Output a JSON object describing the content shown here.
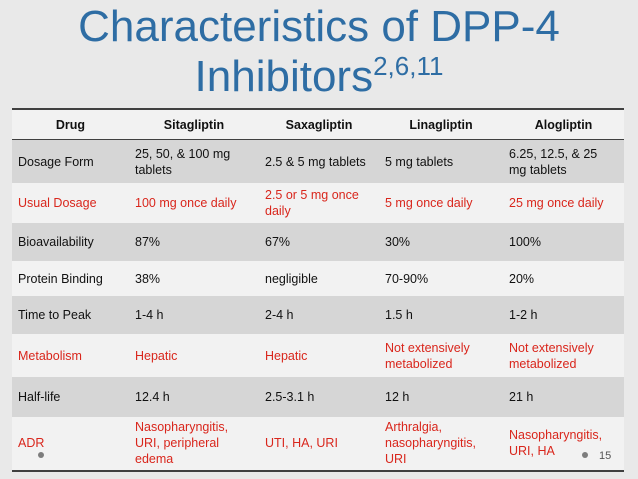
{
  "slide": {
    "title_line1": "Characteristics of DPP-4",
    "title_line2": "Inhibitors",
    "title_refs": "2,6,11",
    "page_number": "15"
  },
  "table": {
    "headers": [
      "Drug",
      "Sitagliptin",
      "Saxagliptin",
      "Linagliptin",
      "Alogliptin"
    ],
    "rows": [
      {
        "cells": [
          "Dosage Form",
          "25, 50, & 100 mg tablets",
          "2.5 & 5 mg tablets",
          "5 mg tablets",
          "6.25, 12.5, & 25 mg tablets"
        ]
      },
      {
        "cells": [
          "Usual Dosage",
          "100 mg once daily",
          "2.5 or 5 mg once daily",
          "5 mg once daily",
          "25 mg once daily"
        ]
      },
      {
        "cells": [
          "Bioavailability",
          "87%",
          "67%",
          "30%",
          "100%"
        ]
      },
      {
        "cells": [
          "Protein Binding",
          "38%",
          "negligible",
          "70-90%",
          "20%"
        ]
      },
      {
        "cells": [
          "Time to Peak",
          "1-4 h",
          "2-4 h",
          "1.5 h",
          "1-2 h"
        ]
      },
      {
        "cells": [
          "Metabolism",
          "Hepatic",
          "Hepatic",
          "Not extensively metabolized",
          "Not extensively metabolized"
        ]
      },
      {
        "cells": [
          "Half-life",
          "12.4 h",
          "2.5-3.1 h",
          "12 h",
          "21 h"
        ]
      },
      {
        "cells": [
          "ADR",
          "Nasopharyngitis, URI, peripheral edema",
          "UTI, HA, URI",
          "Arthralgia, nasopharyngitis, URI",
          "Nasopharyngitis, URI, HA"
        ]
      }
    ]
  },
  "colors": {
    "title": "#2e6da4",
    "highlight_text": "#d9261c",
    "background": "#e9e9e9"
  }
}
